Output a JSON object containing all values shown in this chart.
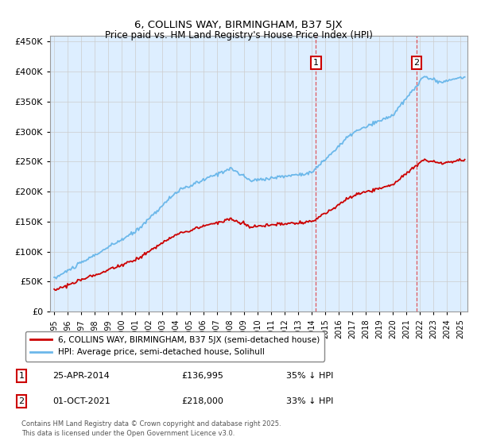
{
  "title": "6, COLLINS WAY, BIRMINGHAM, B37 5JX",
  "subtitle": "Price paid vs. HM Land Registry's House Price Index (HPI)",
  "ylim": [
    0,
    460000
  ],
  "yticks": [
    0,
    50000,
    100000,
    150000,
    200000,
    250000,
    300000,
    350000,
    400000,
    450000
  ],
  "hpi_color": "#6cb8ea",
  "price_color": "#cc0000",
  "grid_color": "#cccccc",
  "bg_color": "#ffffff",
  "plot_bg": "#ddeeff",
  "marker1_x": 2014.32,
  "marker2_x": 2021.75,
  "legend1": "6, COLLINS WAY, BIRMINGHAM, B37 5JX (semi-detached house)",
  "legend2": "HPI: Average price, semi-detached house, Solihull",
  "annotation1_num": "1",
  "annotation1_date": "25-APR-2014",
  "annotation1_price": "£136,995",
  "annotation1_hpi": "35% ↓ HPI",
  "annotation2_num": "2",
  "annotation2_date": "01-OCT-2021",
  "annotation2_price": "£218,000",
  "annotation2_hpi": "33% ↓ HPI",
  "footer": "Contains HM Land Registry data © Crown copyright and database right 2025.\nThis data is licensed under the Open Government Licence v3.0."
}
